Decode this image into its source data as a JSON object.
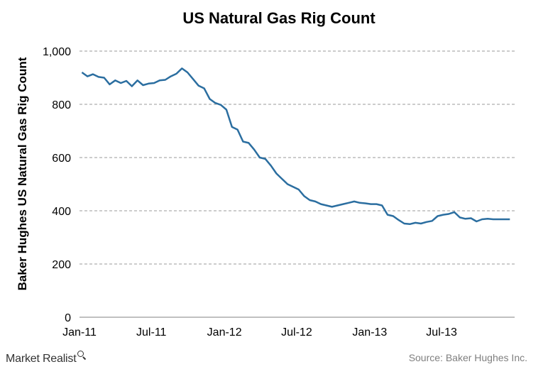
{
  "brand": {
    "text": "Market Realist",
    "icon": "magnifier-icon"
  },
  "source": "Source: Baker Hughes Inc.",
  "colors": {
    "series": "#2b6ea0",
    "grid": "#9a9a9a"
  },
  "chart_data": {
    "type": "line",
    "title": "US Natural Gas Rig Count",
    "xlabel": "",
    "ylabel": "Baker Hughes US Natural Gas Rig Count",
    "ylim": [
      0,
      1000
    ],
    "yticks": [
      0,
      200,
      400,
      600,
      800,
      1000
    ],
    "ytick_labels": [
      "0",
      "200",
      "400",
      "600",
      "800",
      "1,000"
    ],
    "xticks": [
      "2011-01-01",
      "2011-07-01",
      "2012-01-01",
      "2012-07-01",
      "2013-01-01",
      "2013-07-01"
    ],
    "xtick_labels": [
      "Jan-11",
      "Jul-11",
      "Jan-12",
      "Jul-12",
      "Jan-13",
      "Jul-13"
    ],
    "xlim": [
      "2011-01-01",
      "2014-01-01"
    ],
    "grid": "horizontal dashed",
    "legend": "none",
    "series": [
      {
        "x": [
          "2011-01-07",
          "2011-01-21",
          "2011-02-04",
          "2011-02-18",
          "2011-03-04",
          "2011-03-18",
          "2011-04-01",
          "2011-04-15",
          "2011-04-29",
          "2011-05-13",
          "2011-05-27",
          "2011-06-10",
          "2011-06-24",
          "2011-07-08",
          "2011-07-22",
          "2011-08-05",
          "2011-08-19",
          "2011-09-02",
          "2011-09-16",
          "2011-09-30",
          "2011-10-14",
          "2011-10-28",
          "2011-11-11",
          "2011-11-25",
          "2011-12-09",
          "2011-12-23",
          "2012-01-06",
          "2012-01-20",
          "2012-02-03",
          "2012-02-17",
          "2012-03-02",
          "2012-03-16",
          "2012-03-30",
          "2012-04-13",
          "2012-04-27",
          "2012-05-11",
          "2012-05-25",
          "2012-06-08",
          "2012-06-22",
          "2012-07-06",
          "2012-07-20",
          "2012-08-03",
          "2012-08-17",
          "2012-08-31",
          "2012-09-14",
          "2012-09-28",
          "2012-10-12",
          "2012-10-26",
          "2012-11-09",
          "2012-11-23",
          "2012-12-07",
          "2012-12-21",
          "2013-01-04",
          "2013-01-18",
          "2013-02-01",
          "2013-02-15",
          "2013-03-01",
          "2013-03-15",
          "2013-03-29",
          "2013-04-12",
          "2013-04-26",
          "2013-05-10",
          "2013-05-24",
          "2013-06-07",
          "2013-06-21",
          "2013-07-05",
          "2013-07-19",
          "2013-08-02",
          "2013-08-16",
          "2013-08-30",
          "2013-09-13",
          "2013-09-27",
          "2013-10-11",
          "2013-10-25",
          "2013-11-08",
          "2013-11-22",
          "2013-12-06",
          "2013-12-20"
        ],
        "values": [
          920,
          905,
          913,
          903,
          900,
          875,
          890,
          880,
          888,
          868,
          890,
          872,
          878,
          880,
          890,
          892,
          905,
          915,
          935,
          920,
          895,
          870,
          860,
          820,
          805,
          798,
          780,
          715,
          705,
          660,
          655,
          630,
          600,
          595,
          570,
          540,
          520,
          500,
          490,
          480,
          455,
          440,
          435,
          425,
          420,
          415,
          420,
          425,
          430,
          435,
          430,
          428,
          425,
          425,
          420,
          385,
          380,
          365,
          352,
          350,
          355,
          352,
          358,
          362,
          380,
          385,
          388,
          395,
          375,
          370,
          372,
          360,
          368,
          370,
          368,
          368,
          368,
          368
        ]
      }
    ]
  }
}
